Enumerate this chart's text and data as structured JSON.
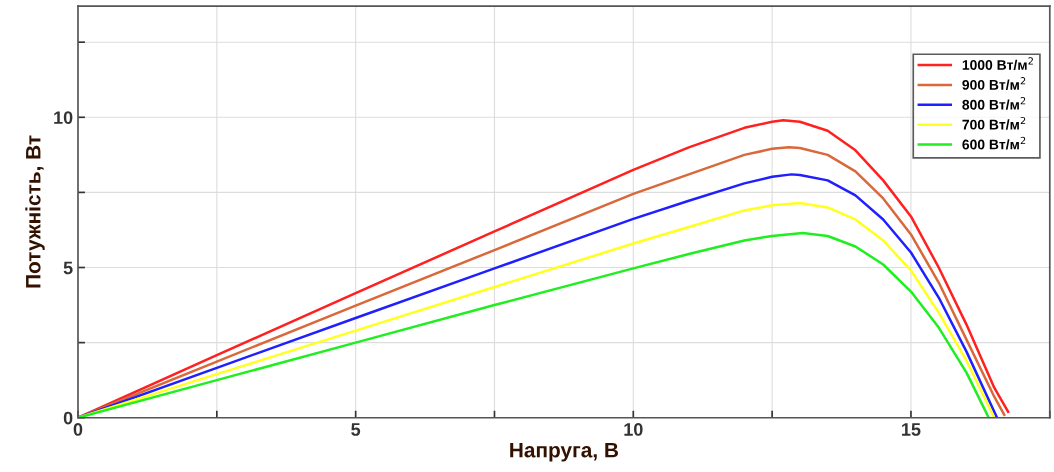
{
  "chart_data": {
    "type": "line",
    "xlabel": "Напруга, В",
    "ylabel": "Потужність, Вт",
    "xlim": [
      0,
      17.5
    ],
    "ylim": [
      0,
      13.7
    ],
    "xticks": [
      0,
      {
        "value": 2.5,
        "label": null
      },
      5,
      {
        "value": 7.5,
        "label": null
      },
      10,
      {
        "value": 12.5,
        "label": null
      },
      15,
      {
        "value": 17.5,
        "label": null
      }
    ],
    "yticks": [
      0,
      {
        "value": 2.5,
        "label": null
      },
      5,
      {
        "value": 7.5,
        "label": null
      },
      10,
      {
        "value": 12.5,
        "label": null
      }
    ],
    "grid": true,
    "legend": "top right",
    "marker": "none",
    "line_style": "solid",
    "series": [
      {
        "name": "1000 Вт/м$^{2}$",
        "color": "#ff2020",
        "x": [
          0,
          2.5,
          5,
          7.5,
          10,
          11,
          12,
          12.5,
          12.7,
          13,
          13.5,
          14,
          14.5,
          15,
          15.5,
          16,
          16.5,
          16.75
        ],
        "values": [
          0,
          2.08,
          4.15,
          6.2,
          8.25,
          9.0,
          9.65,
          9.85,
          9.9,
          9.85,
          9.55,
          8.9,
          7.9,
          6.7,
          5.0,
          3.1,
          1.0,
          0.2
        ]
      },
      {
        "name": "900 Вт/м$^{2}$",
        "color": "#d9683a",
        "x": [
          0,
          2.5,
          5,
          7.5,
          10,
          11,
          12,
          12.5,
          12.8,
          13,
          13.5,
          14,
          14.5,
          15,
          15.5,
          16,
          16.5,
          16.68
        ],
        "values": [
          0,
          1.87,
          3.73,
          5.58,
          7.45,
          8.1,
          8.75,
          8.95,
          9.0,
          8.98,
          8.75,
          8.2,
          7.3,
          6.1,
          4.5,
          2.6,
          0.7,
          0.1
        ]
      },
      {
        "name": "800 Вт/м$^{2}$",
        "color": "#2020ff",
        "x": [
          0,
          2.5,
          5,
          7.5,
          10,
          11,
          12,
          12.5,
          12.85,
          13,
          13.5,
          14,
          14.5,
          15,
          15.5,
          16,
          16.55
        ],
        "values": [
          0,
          1.66,
          3.32,
          4.97,
          6.62,
          7.22,
          7.8,
          8.02,
          8.1,
          8.08,
          7.9,
          7.4,
          6.6,
          5.5,
          4.0,
          2.2,
          0
        ]
      },
      {
        "name": "700 Вт/м$^{2}$",
        "color": "#ffff20",
        "x": [
          0,
          2.5,
          5,
          7.5,
          10,
          11,
          12,
          12.5,
          13,
          13.5,
          14,
          14.5,
          15,
          15.5,
          16,
          16.5
        ],
        "values": [
          0,
          1.45,
          2.9,
          4.35,
          5.8,
          6.35,
          6.9,
          7.07,
          7.15,
          7.0,
          6.6,
          5.9,
          4.9,
          3.5,
          1.9,
          0
        ]
      },
      {
        "name": "600 Вт/м$^{2}$",
        "color": "#20ee20",
        "x": [
          0,
          2.5,
          5,
          7.5,
          10,
          11,
          12,
          12.5,
          13.05,
          13.5,
          14,
          14.5,
          15,
          15.5,
          16,
          16.4
        ],
        "values": [
          0,
          1.25,
          2.5,
          3.75,
          4.97,
          5.45,
          5.9,
          6.05,
          6.15,
          6.05,
          5.7,
          5.1,
          4.2,
          3.0,
          1.5,
          0
        ]
      }
    ]
  }
}
